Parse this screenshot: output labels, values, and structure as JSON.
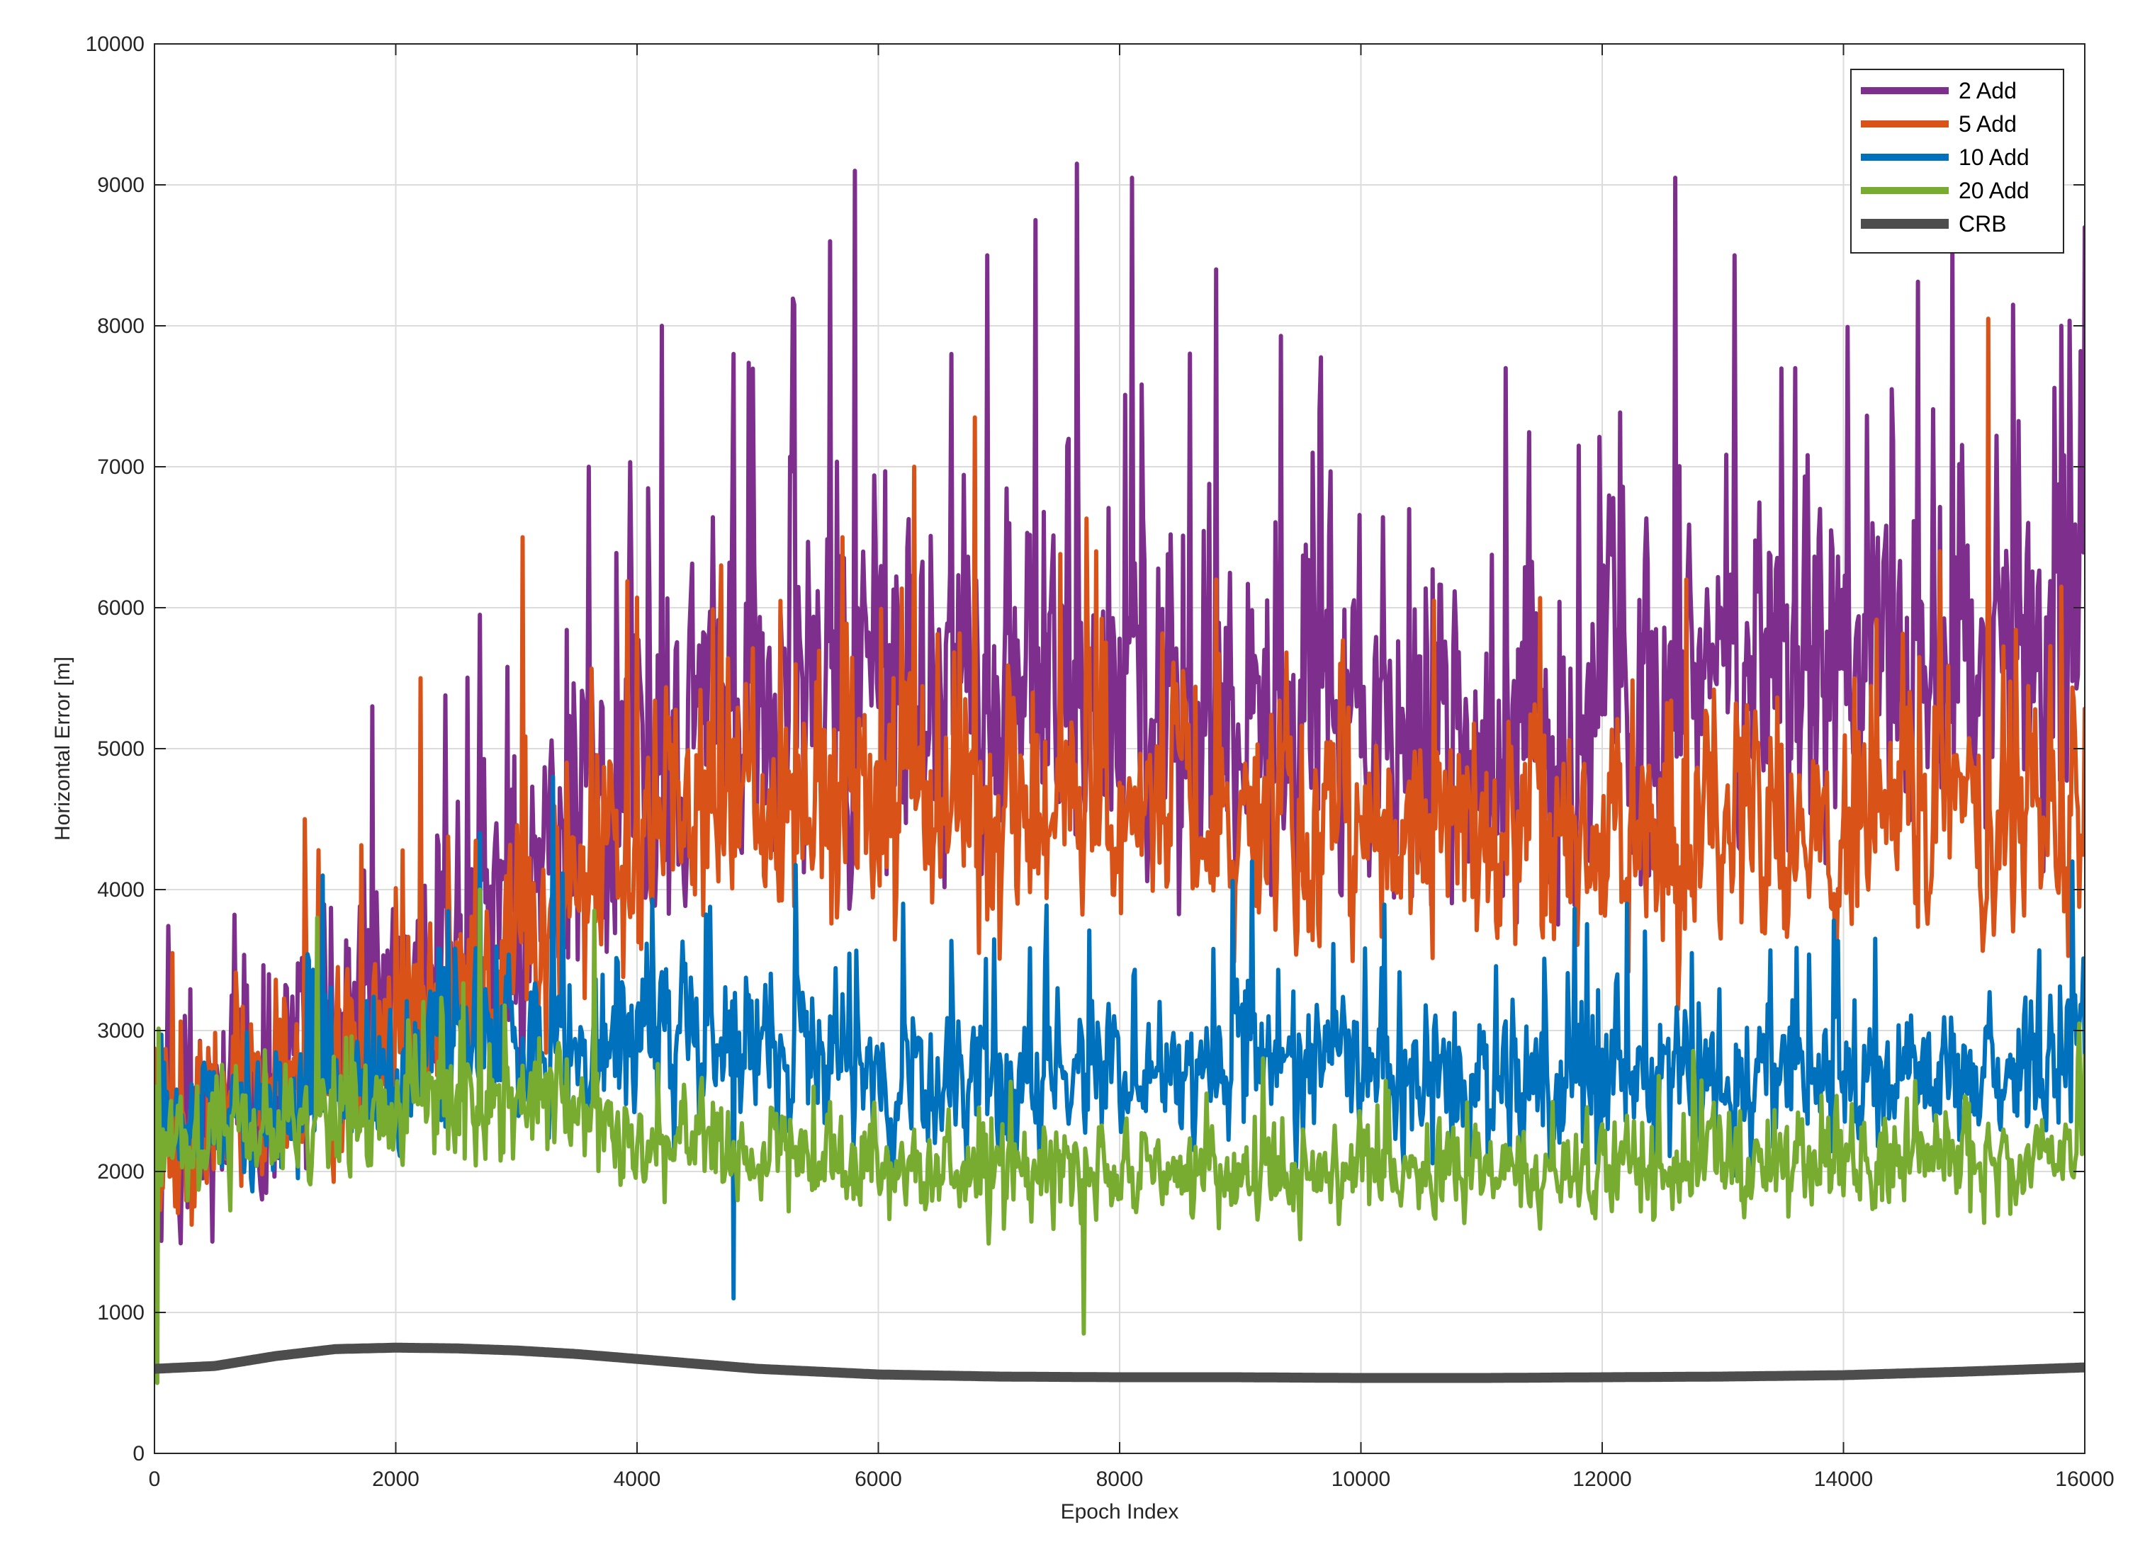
{
  "chart_data": {
    "type": "line",
    "title": "",
    "xlabel": "Epoch Index",
    "ylabel": "Horizontal Error [m]",
    "xlim": [
      0,
      16000
    ],
    "ylim": [
      0,
      10000
    ],
    "xticks": [
      0,
      2000,
      4000,
      6000,
      8000,
      10000,
      12000,
      14000,
      16000
    ],
    "yticks": [
      0,
      1000,
      2000,
      3000,
      4000,
      5000,
      6000,
      7000,
      8000,
      9000,
      10000
    ],
    "xtick_labels": [
      "0",
      "2000",
      "4000",
      "6000",
      "8000",
      "10000",
      "12000",
      "14000",
      "16000"
    ],
    "ytick_labels": [
      "0",
      "1000",
      "2000",
      "3000",
      "4000",
      "5000",
      "6000",
      "7000",
      "8000",
      "9000",
      "10000"
    ],
    "grid": true,
    "legend_position": "top-right",
    "series": [
      {
        "name": "2 Add",
        "color": "#7E2F8E",
        "x": [
          0,
          500,
          1000,
          1500,
          2000,
          2500,
          3000,
          3500,
          4000,
          5000,
          6000,
          7000,
          8000,
          9000,
          10000,
          11000,
          12000,
          13000,
          14000,
          15000,
          16000
        ],
        "values": [
          2100,
          2400,
          2700,
          3000,
          3200,
          3400,
          3800,
          4400,
          5000,
          5400,
          5500,
          5400,
          5350,
          5300,
          5200,
          5000,
          5200,
          5600,
          5500,
          5600,
          5700
        ],
        "noise_spread": [
          900,
          900,
          1000,
          1100,
          1100,
          1200,
          1300,
          1300,
          1400,
          1400,
          1400,
          1400,
          1400,
          1400,
          1350,
          1300,
          1350,
          1400,
          1400,
          1400,
          1400
        ],
        "peaks": [
          [
            1800,
            5300
          ],
          [
            2700,
            5950
          ],
          [
            3600,
            7000
          ],
          [
            4200,
            8000
          ],
          [
            4800,
            7800
          ],
          [
            5300,
            8150
          ],
          [
            5600,
            8600
          ],
          [
            5800,
            9100
          ],
          [
            6600,
            7800
          ],
          [
            6900,
            8500
          ],
          [
            7300,
            8750
          ],
          [
            7650,
            9150
          ],
          [
            8100,
            9050
          ],
          [
            8800,
            8400
          ],
          [
            9600,
            7100
          ],
          [
            10400,
            6700
          ],
          [
            11200,
            7700
          ],
          [
            11800,
            7150
          ],
          [
            12600,
            9050
          ],
          [
            13100,
            8500
          ],
          [
            13600,
            7700
          ],
          [
            14400,
            7550
          ],
          [
            14900,
            8600
          ],
          [
            15400,
            8150
          ],
          [
            15800,
            8000
          ],
          [
            16000,
            8700
          ]
        ]
      },
      {
        "name": "5 Add",
        "color": "#D95319",
        "x": [
          0,
          500,
          1000,
          1500,
          2000,
          2500,
          3000,
          3500,
          4000,
          5000,
          6000,
          7000,
          8000,
          9000,
          10000,
          11000,
          12000,
          13000,
          14000,
          15000,
          16000
        ],
        "values": [
          2200,
          2400,
          2600,
          2900,
          3100,
          3300,
          3600,
          4100,
          4500,
          4600,
          4600,
          4500,
          4500,
          4450,
          4400,
          4300,
          4300,
          4400,
          4450,
          4500,
          4600
        ],
        "noise_spread": [
          750,
          750,
          800,
          850,
          900,
          950,
          1000,
          1000,
          1000,
          1000,
          1000,
          1000,
          950,
          950,
          950,
          900,
          900,
          950,
          950,
          950,
          950
        ],
        "peaks": [
          [
            150,
            3550
          ],
          [
            1250,
            4500
          ],
          [
            2200,
            5500
          ],
          [
            3050,
            6500
          ],
          [
            4700,
            6300
          ],
          [
            5700,
            6500
          ],
          [
            6300,
            7000
          ],
          [
            6800,
            7350
          ],
          [
            7800,
            6400
          ],
          [
            8800,
            6200
          ],
          [
            10600,
            6050
          ],
          [
            12700,
            6200
          ],
          [
            14800,
            6400
          ],
          [
            15200,
            8050
          ],
          [
            15800,
            6150
          ]
        ]
      },
      {
        "name": "10 Add",
        "color": "#0072BD",
        "x": [
          0,
          500,
          1000,
          1500,
          2000,
          2500,
          3000,
          3500,
          4000,
          5000,
          6000,
          7000,
          8000,
          9000,
          10000,
          11000,
          12000,
          13000,
          14000,
          15000,
          16000
        ],
        "values": [
          2200,
          2300,
          2450,
          2600,
          2750,
          2900,
          3000,
          3000,
          2900,
          2800,
          2750,
          2700,
          2700,
          2680,
          2650,
          2600,
          2650,
          2700,
          2700,
          2750,
          2800
        ],
        "noise_spread": [
          600,
          600,
          650,
          700,
          700,
          750,
          750,
          700,
          700,
          650,
          650,
          650,
          650,
          650,
          650,
          600,
          650,
          650,
          650,
          650,
          650
        ],
        "peaks": [
          [
            1400,
            4100
          ],
          [
            2700,
            4400
          ],
          [
            3300,
            4800
          ],
          [
            4800,
            1100
          ],
          [
            6200,
            3900
          ],
          [
            9100,
            4200
          ],
          [
            12200,
            3900
          ],
          [
            15900,
            4200
          ]
        ]
      },
      {
        "name": "20 Add",
        "color": "#77AC30",
        "x": [
          0,
          500,
          1000,
          1500,
          2000,
          2500,
          3000,
          3500,
          4000,
          5000,
          6000,
          7000,
          8000,
          9000,
          10000,
          11000,
          12000,
          13000,
          14000,
          15000,
          16000
        ],
        "values": [
          2100,
          2200,
          2300,
          2400,
          2450,
          2500,
          2550,
          2400,
          2200,
          2100,
          2000,
          1950,
          1950,
          1950,
          2000,
          2000,
          2000,
          2050,
          2050,
          2100,
          2150
        ],
        "noise_spread": [
          450,
          450,
          500,
          500,
          500,
          500,
          500,
          450,
          400,
          400,
          380,
          380,
          380,
          380,
          380,
          380,
          380,
          380,
          380,
          380,
          400
        ],
        "peaks": [
          [
            20,
            500
          ],
          [
            1350,
            3800
          ],
          [
            2700,
            4000
          ],
          [
            3650,
            3850
          ],
          [
            7700,
            850
          ],
          [
            15950,
            3050
          ]
        ]
      },
      {
        "name": "CRB",
        "color": "#4D4D4D",
        "x": [
          0,
          500,
          1000,
          1500,
          2000,
          2500,
          3000,
          3500,
          4000,
          5000,
          6000,
          7000,
          8000,
          9000,
          10000,
          11000,
          12000,
          13000,
          14000,
          15000,
          16000
        ],
        "values": [
          600,
          620,
          690,
          740,
          750,
          745,
          730,
          705,
          670,
          600,
          560,
          545,
          540,
          540,
          535,
          535,
          540,
          545,
          555,
          580,
          610
        ],
        "noise_spread": [
          0,
          0,
          0,
          0,
          0,
          0,
          0,
          0,
          0,
          0,
          0,
          0,
          0,
          0,
          0,
          0,
          0,
          0,
          0,
          0,
          0
        ],
        "peaks": []
      }
    ]
  }
}
